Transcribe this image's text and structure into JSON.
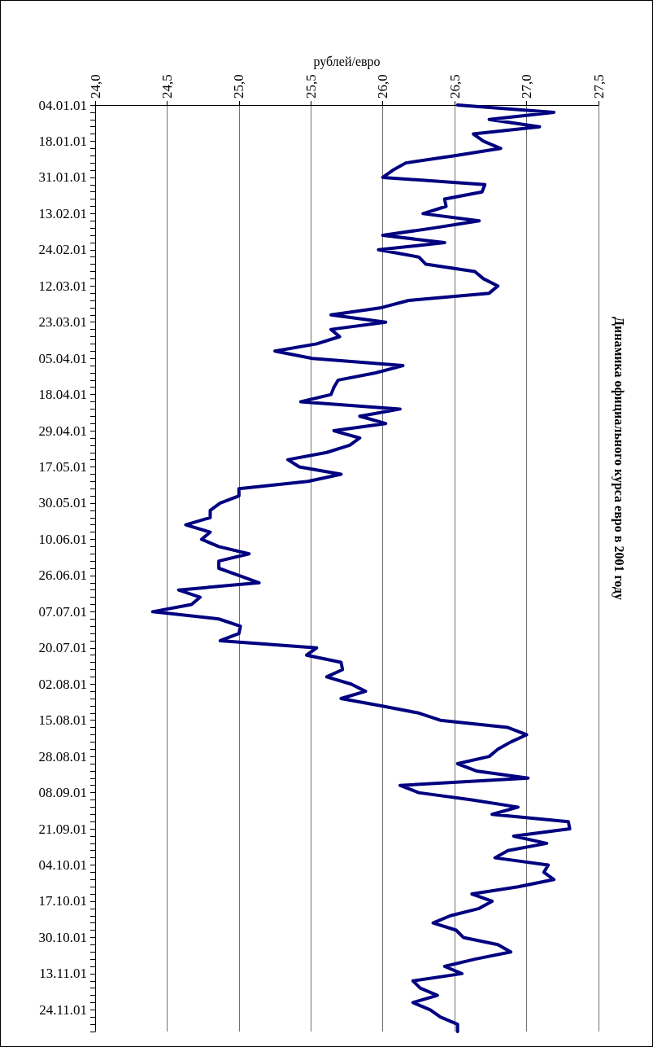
{
  "chart_data": {
    "type": "line",
    "orientation": "horizontal",
    "title": "Динамика официального курса евро в 2001 году",
    "xlabel": "рублей/евро",
    "categories": [
      "04.01.01",
      null,
      null,
      null,
      null,
      "18.01.01",
      null,
      null,
      null,
      null,
      "31.01.01",
      null,
      null,
      null,
      null,
      "13.02.01",
      null,
      null,
      null,
      null,
      "24.02.01",
      null,
      null,
      null,
      null,
      "12.03.01",
      null,
      null,
      null,
      null,
      "23.03.01",
      null,
      null,
      null,
      null,
      "05.04.01",
      null,
      null,
      null,
      null,
      "18.04.01",
      null,
      null,
      null,
      null,
      "29.04.01",
      null,
      null,
      null,
      null,
      "17.05.01",
      null,
      null,
      null,
      null,
      "30.05.01",
      null,
      null,
      null,
      null,
      "10.06.01",
      null,
      null,
      null,
      null,
      "26.06.01",
      null,
      null,
      null,
      null,
      "07.07.01",
      null,
      null,
      null,
      null,
      "20.07.01",
      null,
      null,
      null,
      null,
      "02.08.01",
      null,
      null,
      null,
      null,
      "15.08.01",
      null,
      null,
      null,
      null,
      "28.08.01",
      null,
      null,
      null,
      null,
      "08.09.01",
      null,
      null,
      null,
      null,
      "21.09.01",
      null,
      null,
      null,
      null,
      "04.10.01",
      null,
      null,
      null,
      null,
      "17.10.01",
      null,
      null,
      null,
      null,
      "30.10.01",
      null,
      null,
      null,
      null,
      "13.11.01",
      null,
      null,
      null,
      null,
      "24.11.01",
      null,
      null,
      null
    ],
    "series": [
      {
        "color": "#000080",
        "values": [
          26.52,
          27.19,
          26.74,
          27.09,
          26.63,
          26.7,
          26.82,
          26.5,
          26.16,
          26.07,
          26.0,
          26.71,
          26.69,
          26.43,
          26.44,
          26.28,
          26.67,
          26.35,
          26.0,
          26.43,
          25.97,
          26.25,
          26.3,
          26.64,
          26.7,
          26.8,
          26.74,
          26.18,
          25.99,
          25.64,
          26.02,
          25.64,
          25.7,
          25.54,
          25.25,
          25.51,
          26.14,
          25.95,
          25.69,
          25.66,
          25.64,
          25.43,
          26.12,
          25.84,
          26.02,
          25.66,
          25.84,
          25.77,
          25.61,
          25.34,
          25.42,
          25.71,
          25.48,
          25.0,
          25.0,
          24.87,
          24.8,
          24.8,
          24.63,
          24.8,
          24.74,
          24.86,
          25.07,
          24.86,
          24.86,
          25.0,
          25.14,
          24.58,
          24.73,
          24.67,
          24.4,
          24.86,
          25.01,
          25.0,
          24.87,
          25.54,
          25.47,
          25.71,
          25.72,
          25.61,
          25.78,
          25.88,
          25.71,
          25.99,
          26.25,
          26.4,
          26.87,
          27.0,
          26.89,
          26.8,
          26.74,
          26.52,
          26.65,
          27.01,
          26.12,
          26.25,
          26.62,
          26.94,
          26.76,
          27.29,
          27.3,
          26.91,
          27.14,
          26.87,
          26.78,
          27.15,
          27.12,
          27.19,
          26.94,
          26.62,
          26.76,
          26.67,
          26.47,
          26.35,
          26.51,
          26.56,
          26.8,
          26.89,
          26.64,
          26.43,
          26.55,
          26.21,
          26.26,
          26.38,
          26.21,
          26.33,
          26.4,
          26.52,
          26.52
        ]
      }
    ],
    "xlim": [
      24,
      27.5
    ],
    "xticks": [
      {
        "value": 24,
        "label": "24,0"
      },
      {
        "value": 24.5,
        "label": "24,5"
      },
      {
        "value": 25,
        "label": "25,0"
      },
      {
        "value": 25.5,
        "label": "25,5"
      },
      {
        "value": 26,
        "label": "26,0"
      },
      {
        "value": 26.5,
        "label": "26,5"
      },
      {
        "value": 27,
        "label": "27,0"
      },
      {
        "value": 27.5,
        "label": "27,5"
      }
    ],
    "grid": "x",
    "marker": "none",
    "line_style": "solid"
  }
}
